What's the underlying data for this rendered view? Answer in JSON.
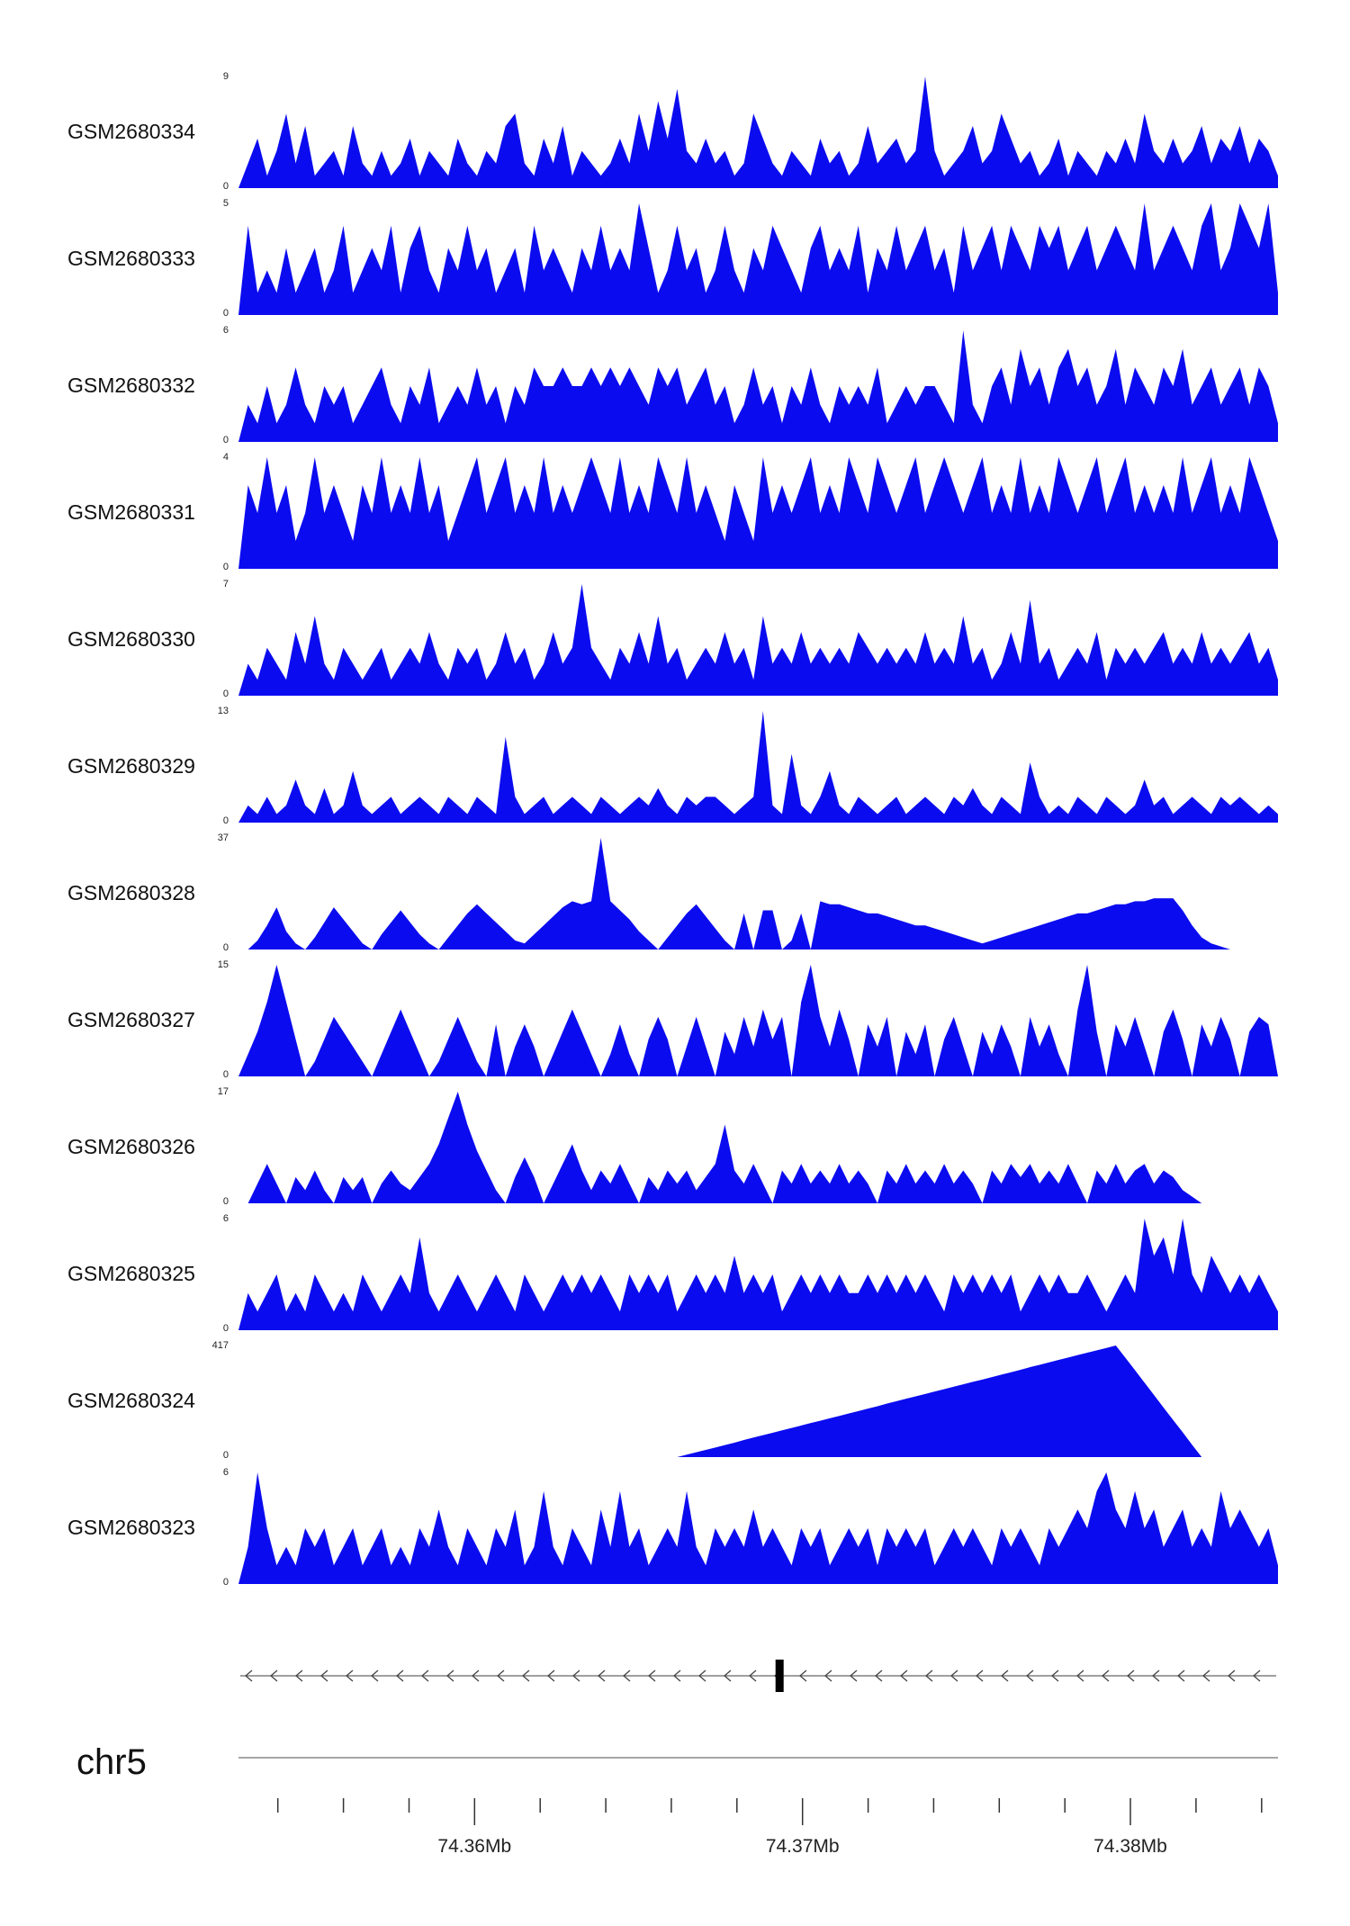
{
  "chart_data": {
    "type": "area",
    "title": "Genome coverage tracks",
    "chromosome": "chr5",
    "x_range_mb": [
      74.3528,
      74.3845
    ],
    "fill_color": "#0b0bf0",
    "y_zero_label": "0",
    "axis": {
      "chromosome_label": "chr5",
      "tick_start_mb": 74.354,
      "tick_step_mb": 0.002,
      "tick_end_mb": 74.384,
      "major_ticks": [
        {
          "mb": 74.36,
          "label": "74.36Mb"
        },
        {
          "mb": 74.37,
          "label": "74.37Mb"
        },
        {
          "mb": 74.38,
          "label": "74.38Mb"
        }
      ]
    },
    "gene_track": {
      "strand": "left",
      "exon_mb": 74.3693
    },
    "tracks": [
      {
        "label": "GSM2680334",
        "ymax": 9,
        "values": [
          0,
          2,
          4,
          1,
          3,
          6,
          2,
          5,
          1,
          2,
          3,
          1,
          5,
          2,
          1,
          3,
          1,
          2,
          4,
          1,
          3,
          2,
          1,
          4,
          2,
          1,
          3,
          2,
          5,
          6,
          2,
          1,
          4,
          2,
          5,
          1,
          3,
          2,
          1,
          2,
          4,
          2,
          6,
          3,
          7,
          4,
          8,
          3,
          2,
          4,
          2,
          3,
          1,
          2,
          6,
          4,
          2,
          1,
          3,
          2,
          1,
          4,
          2,
          3,
          1,
          2,
          5,
          2,
          3,
          4,
          2,
          3,
          9,
          3,
          1,
          2,
          3,
          5,
          2,
          3,
          6,
          4,
          2,
          3,
          1,
          2,
          4,
          1,
          3,
          2,
          1,
          3,
          2,
          4,
          2,
          6,
          3,
          2,
          4,
          2,
          3,
          5,
          2,
          4,
          3,
          5,
          2,
          4,
          3,
          1
        ]
      },
      {
        "label": "GSM2680333",
        "ymax": 5,
        "values": [
          0,
          4,
          1,
          2,
          1,
          3,
          1,
          2,
          3,
          1,
          2,
          4,
          1,
          2,
          3,
          2,
          4,
          1,
          3,
          4,
          2,
          1,
          3,
          2,
          4,
          2,
          3,
          1,
          2,
          3,
          1,
          4,
          2,
          3,
          2,
          1,
          3,
          2,
          4,
          2,
          3,
          2,
          5,
          3,
          1,
          2,
          4,
          2,
          3,
          1,
          2,
          4,
          2,
          1,
          3,
          2,
          4,
          3,
          2,
          1,
          3,
          4,
          2,
          3,
          2,
          4,
          1,
          3,
          2,
          4,
          2,
          3,
          4,
          2,
          3,
          1,
          4,
          2,
          3,
          4,
          2,
          4,
          3,
          2,
          4,
          3,
          4,
          2,
          3,
          4,
          2,
          3,
          4,
          3,
          2,
          5,
          2,
          3,
          4,
          3,
          2,
          4,
          5,
          2,
          3,
          5,
          4,
          3,
          5,
          1
        ]
      },
      {
        "label": "GSM2680332",
        "ymax": 6,
        "values": [
          0,
          2,
          1,
          3,
          1,
          2,
          4,
          2,
          1,
          3,
          2,
          3,
          1,
          2,
          3,
          4,
          2,
          1,
          3,
          2,
          4,
          1,
          2,
          3,
          2,
          4,
          2,
          3,
          1,
          3,
          2,
          4,
          3,
          3,
          4,
          3,
          3,
          4,
          3,
          4,
          3,
          4,
          3,
          2,
          4,
          3,
          4,
          2,
          3,
          4,
          2,
          3,
          1,
          2,
          4,
          2,
          3,
          1,
          3,
          2,
          4,
          2,
          1,
          3,
          2,
          3,
          2,
          4,
          1,
          2,
          3,
          2,
          3,
          3,
          2,
          1,
          6,
          2,
          1,
          3,
          4,
          2,
          5,
          3,
          4,
          2,
          4,
          5,
          3,
          4,
          2,
          3,
          5,
          2,
          4,
          3,
          2,
          4,
          3,
          5,
          2,
          3,
          4,
          2,
          3,
          4,
          2,
          4,
          3,
          1
        ]
      },
      {
        "label": "GSM2680331",
        "ymax": 4,
        "values": [
          0,
          3,
          2,
          4,
          2,
          3,
          1,
          2,
          4,
          2,
          3,
          2,
          1,
          3,
          2,
          4,
          2,
          3,
          2,
          4,
          2,
          3,
          1,
          2,
          3,
          4,
          2,
          3,
          4,
          2,
          3,
          2,
          4,
          2,
          3,
          2,
          3,
          4,
          3,
          2,
          4,
          2,
          3,
          2,
          4,
          3,
          2,
          4,
          2,
          3,
          2,
          1,
          3,
          2,
          1,
          4,
          2,
          3,
          2,
          3,
          4,
          2,
          3,
          2,
          4,
          3,
          2,
          4,
          3,
          2,
          3,
          4,
          2,
          3,
          4,
          3,
          2,
          3,
          4,
          2,
          3,
          2,
          4,
          2,
          3,
          2,
          4,
          3,
          2,
          3,
          4,
          2,
          3,
          4,
          2,
          3,
          2,
          3,
          2,
          4,
          2,
          3,
          4,
          2,
          3,
          2,
          4,
          3,
          2,
          1
        ]
      },
      {
        "label": "GSM2680330",
        "ymax": 7,
        "values": [
          0,
          2,
          1,
          3,
          2,
          1,
          4,
          2,
          5,
          2,
          1,
          3,
          2,
          1,
          2,
          3,
          1,
          2,
          3,
          2,
          4,
          2,
          1,
          3,
          2,
          3,
          1,
          2,
          4,
          2,
          3,
          1,
          2,
          4,
          2,
          3,
          7,
          3,
          2,
          1,
          3,
          2,
          4,
          2,
          5,
          2,
          3,
          1,
          2,
          3,
          2,
          4,
          2,
          3,
          1,
          5,
          2,
          3,
          2,
          4,
          2,
          3,
          2,
          3,
          2,
          4,
          3,
          2,
          3,
          2,
          3,
          2,
          4,
          2,
          3,
          2,
          5,
          2,
          3,
          1,
          2,
          4,
          2,
          6,
          2,
          3,
          1,
          2,
          3,
          2,
          4,
          1,
          3,
          2,
          3,
          2,
          3,
          4,
          2,
          3,
          2,
          4,
          2,
          3,
          2,
          3,
          4,
          2,
          3,
          1
        ]
      },
      {
        "label": "GSM2680329",
        "ymax": 13,
        "values": [
          0,
          2,
          1,
          3,
          1,
          2,
          5,
          2,
          1,
          4,
          1,
          2,
          6,
          2,
          1,
          2,
          3,
          1,
          2,
          3,
          2,
          1,
          3,
          2,
          1,
          3,
          2,
          1,
          10,
          3,
          1,
          2,
          3,
          1,
          2,
          3,
          2,
          1,
          3,
          2,
          1,
          2,
          3,
          2,
          4,
          2,
          1,
          3,
          2,
          3,
          3,
          2,
          1,
          2,
          3,
          13,
          2,
          1,
          8,
          2,
          1,
          3,
          6,
          2,
          1,
          3,
          2,
          1,
          2,
          3,
          1,
          2,
          3,
          2,
          1,
          3,
          2,
          4,
          2,
          1,
          3,
          2,
          1,
          7,
          3,
          1,
          2,
          1,
          3,
          2,
          1,
          3,
          2,
          1,
          2,
          5,
          2,
          3,
          1,
          2,
          3,
          2,
          1,
          3,
          2,
          3,
          2,
          1,
          2,
          1
        ]
      },
      {
        "label": "GSM2680328",
        "ymax": 37,
        "values": [
          0,
          0,
          3,
          8,
          14,
          6,
          2,
          0,
          4,
          9,
          14,
          10,
          6,
          2,
          0,
          5,
          9,
          13,
          9,
          5,
          2,
          0,
          4,
          8,
          12,
          15,
          12,
          9,
          6,
          3,
          2,
          5,
          8,
          11,
          14,
          16,
          15,
          16,
          37,
          16,
          13,
          10,
          6,
          3,
          0,
          4,
          8,
          12,
          15,
          11,
          7,
          3,
          0,
          12,
          0,
          13,
          13,
          0,
          3,
          12,
          0,
          16,
          15,
          15,
          14,
          13,
          12,
          12,
          11,
          10,
          9,
          8,
          8,
          7,
          6,
          5,
          4,
          3,
          2,
          3,
          4,
          5,
          6,
          7,
          8,
          9,
          10,
          11,
          12,
          12,
          13,
          14,
          15,
          15,
          16,
          16,
          17,
          17,
          17,
          13,
          8,
          4,
          2,
          1,
          0,
          0,
          0,
          0,
          0,
          0
        ]
      },
      {
        "label": "GSM2680327",
        "ymax": 15,
        "values": [
          0,
          3,
          6,
          10,
          15,
          10,
          5,
          0,
          2,
          5,
          8,
          6,
          4,
          2,
          0,
          3,
          6,
          9,
          6,
          3,
          0,
          2,
          5,
          8,
          5,
          2,
          0,
          7,
          0,
          4,
          7,
          4,
          0,
          3,
          6,
          9,
          6,
          3,
          0,
          3,
          7,
          3,
          0,
          5,
          8,
          5,
          0,
          4,
          8,
          4,
          0,
          6,
          3,
          8,
          4,
          9,
          5,
          8,
          0,
          10,
          15,
          8,
          4,
          9,
          5,
          0,
          7,
          4,
          8,
          0,
          6,
          3,
          7,
          0,
          5,
          8,
          4,
          0,
          6,
          3,
          7,
          4,
          0,
          8,
          4,
          7,
          3,
          0,
          9,
          15,
          6,
          0,
          7,
          4,
          8,
          4,
          0,
          6,
          9,
          5,
          0,
          7,
          4,
          8,
          5,
          0,
          6,
          8,
          7,
          0
        ]
      },
      {
        "label": "GSM2680326",
        "ymax": 17,
        "values": [
          0,
          0,
          3,
          6,
          3,
          0,
          4,
          2,
          5,
          2,
          0,
          4,
          2,
          4,
          0,
          3,
          5,
          3,
          2,
          4,
          6,
          9,
          13,
          17,
          12,
          8,
          5,
          2,
          0,
          4,
          7,
          4,
          0,
          3,
          6,
          9,
          5,
          2,
          5,
          3,
          6,
          3,
          0,
          4,
          2,
          5,
          3,
          5,
          2,
          4,
          6,
          12,
          5,
          3,
          6,
          3,
          0,
          5,
          3,
          6,
          3,
          5,
          3,
          6,
          3,
          5,
          3,
          0,
          5,
          3,
          6,
          3,
          5,
          3,
          6,
          3,
          5,
          3,
          0,
          5,
          3,
          6,
          4,
          6,
          3,
          5,
          3,
          6,
          3,
          0,
          5,
          3,
          6,
          3,
          5,
          6,
          3,
          5,
          4,
          2,
          1,
          0,
          0,
          0,
          0,
          0,
          0,
          0,
          0,
          0
        ]
      },
      {
        "label": "GSM2680325",
        "ymax": 6,
        "values": [
          0,
          2,
          1,
          2,
          3,
          1,
          2,
          1,
          3,
          2,
          1,
          2,
          1,
          3,
          2,
          1,
          2,
          3,
          2,
          5,
          2,
          1,
          2,
          3,
          2,
          1,
          2,
          3,
          2,
          1,
          3,
          2,
          1,
          2,
          3,
          2,
          3,
          2,
          3,
          2,
          1,
          3,
          2,
          3,
          2,
          3,
          1,
          2,
          3,
          2,
          3,
          2,
          4,
          2,
          3,
          2,
          3,
          1,
          2,
          3,
          2,
          3,
          2,
          3,
          2,
          2,
          3,
          2,
          3,
          2,
          3,
          2,
          3,
          2,
          1,
          3,
          2,
          3,
          2,
          3,
          2,
          3,
          1,
          2,
          3,
          2,
          3,
          2,
          2,
          3,
          2,
          1,
          2,
          3,
          2,
          6,
          4,
          5,
          3,
          6,
          3,
          2,
          4,
          3,
          2,
          3,
          2,
          3,
          2,
          1
        ]
      },
      {
        "label": "GSM2680324",
        "ymax": 417,
        "values": [
          0,
          0,
          0,
          0,
          0,
          0,
          0,
          0,
          0,
          0,
          0,
          0,
          0,
          0,
          0,
          0,
          0,
          0,
          0,
          0,
          0,
          0,
          0,
          0,
          0,
          0,
          0,
          0,
          0,
          0,
          0,
          0,
          0,
          0,
          0,
          0,
          0,
          0,
          0,
          0,
          0,
          0,
          0,
          0,
          0,
          0,
          0,
          9,
          18,
          27,
          36,
          45,
          54,
          64,
          73,
          82,
          91,
          100,
          109,
          118,
          127,
          136,
          145,
          154,
          163,
          172,
          181,
          190,
          200,
          209,
          218,
          227,
          236,
          245,
          254,
          263,
          272,
          281,
          290,
          299,
          308,
          317,
          326,
          336,
          345,
          354,
          363,
          372,
          381,
          390,
          399,
          408,
          417,
          371,
          325,
          278,
          232,
          185,
          139,
          93,
          46,
          0,
          0,
          0,
          0,
          0,
          0,
          0,
          0,
          0
        ]
      },
      {
        "label": "GSM2680323",
        "ymax": 6,
        "values": [
          0,
          2,
          6,
          3,
          1,
          2,
          1,
          3,
          2,
          3,
          1,
          2,
          3,
          1,
          2,
          3,
          1,
          2,
          1,
          3,
          2,
          4,
          2,
          1,
          3,
          2,
          1,
          3,
          2,
          4,
          1,
          2,
          5,
          2,
          1,
          3,
          2,
          1,
          4,
          2,
          5,
          2,
          3,
          1,
          2,
          3,
          2,
          5,
          2,
          1,
          3,
          2,
          3,
          2,
          4,
          2,
          3,
          2,
          1,
          3,
          2,
          3,
          1,
          2,
          3,
          2,
          3,
          1,
          3,
          2,
          3,
          2,
          3,
          1,
          2,
          3,
          2,
          3,
          2,
          1,
          3,
          2,
          3,
          2,
          1,
          3,
          2,
          3,
          4,
          3,
          5,
          6,
          4,
          3,
          5,
          3,
          4,
          2,
          3,
          4,
          2,
          3,
          2,
          5,
          3,
          4,
          3,
          2,
          3,
          1
        ]
      }
    ]
  }
}
